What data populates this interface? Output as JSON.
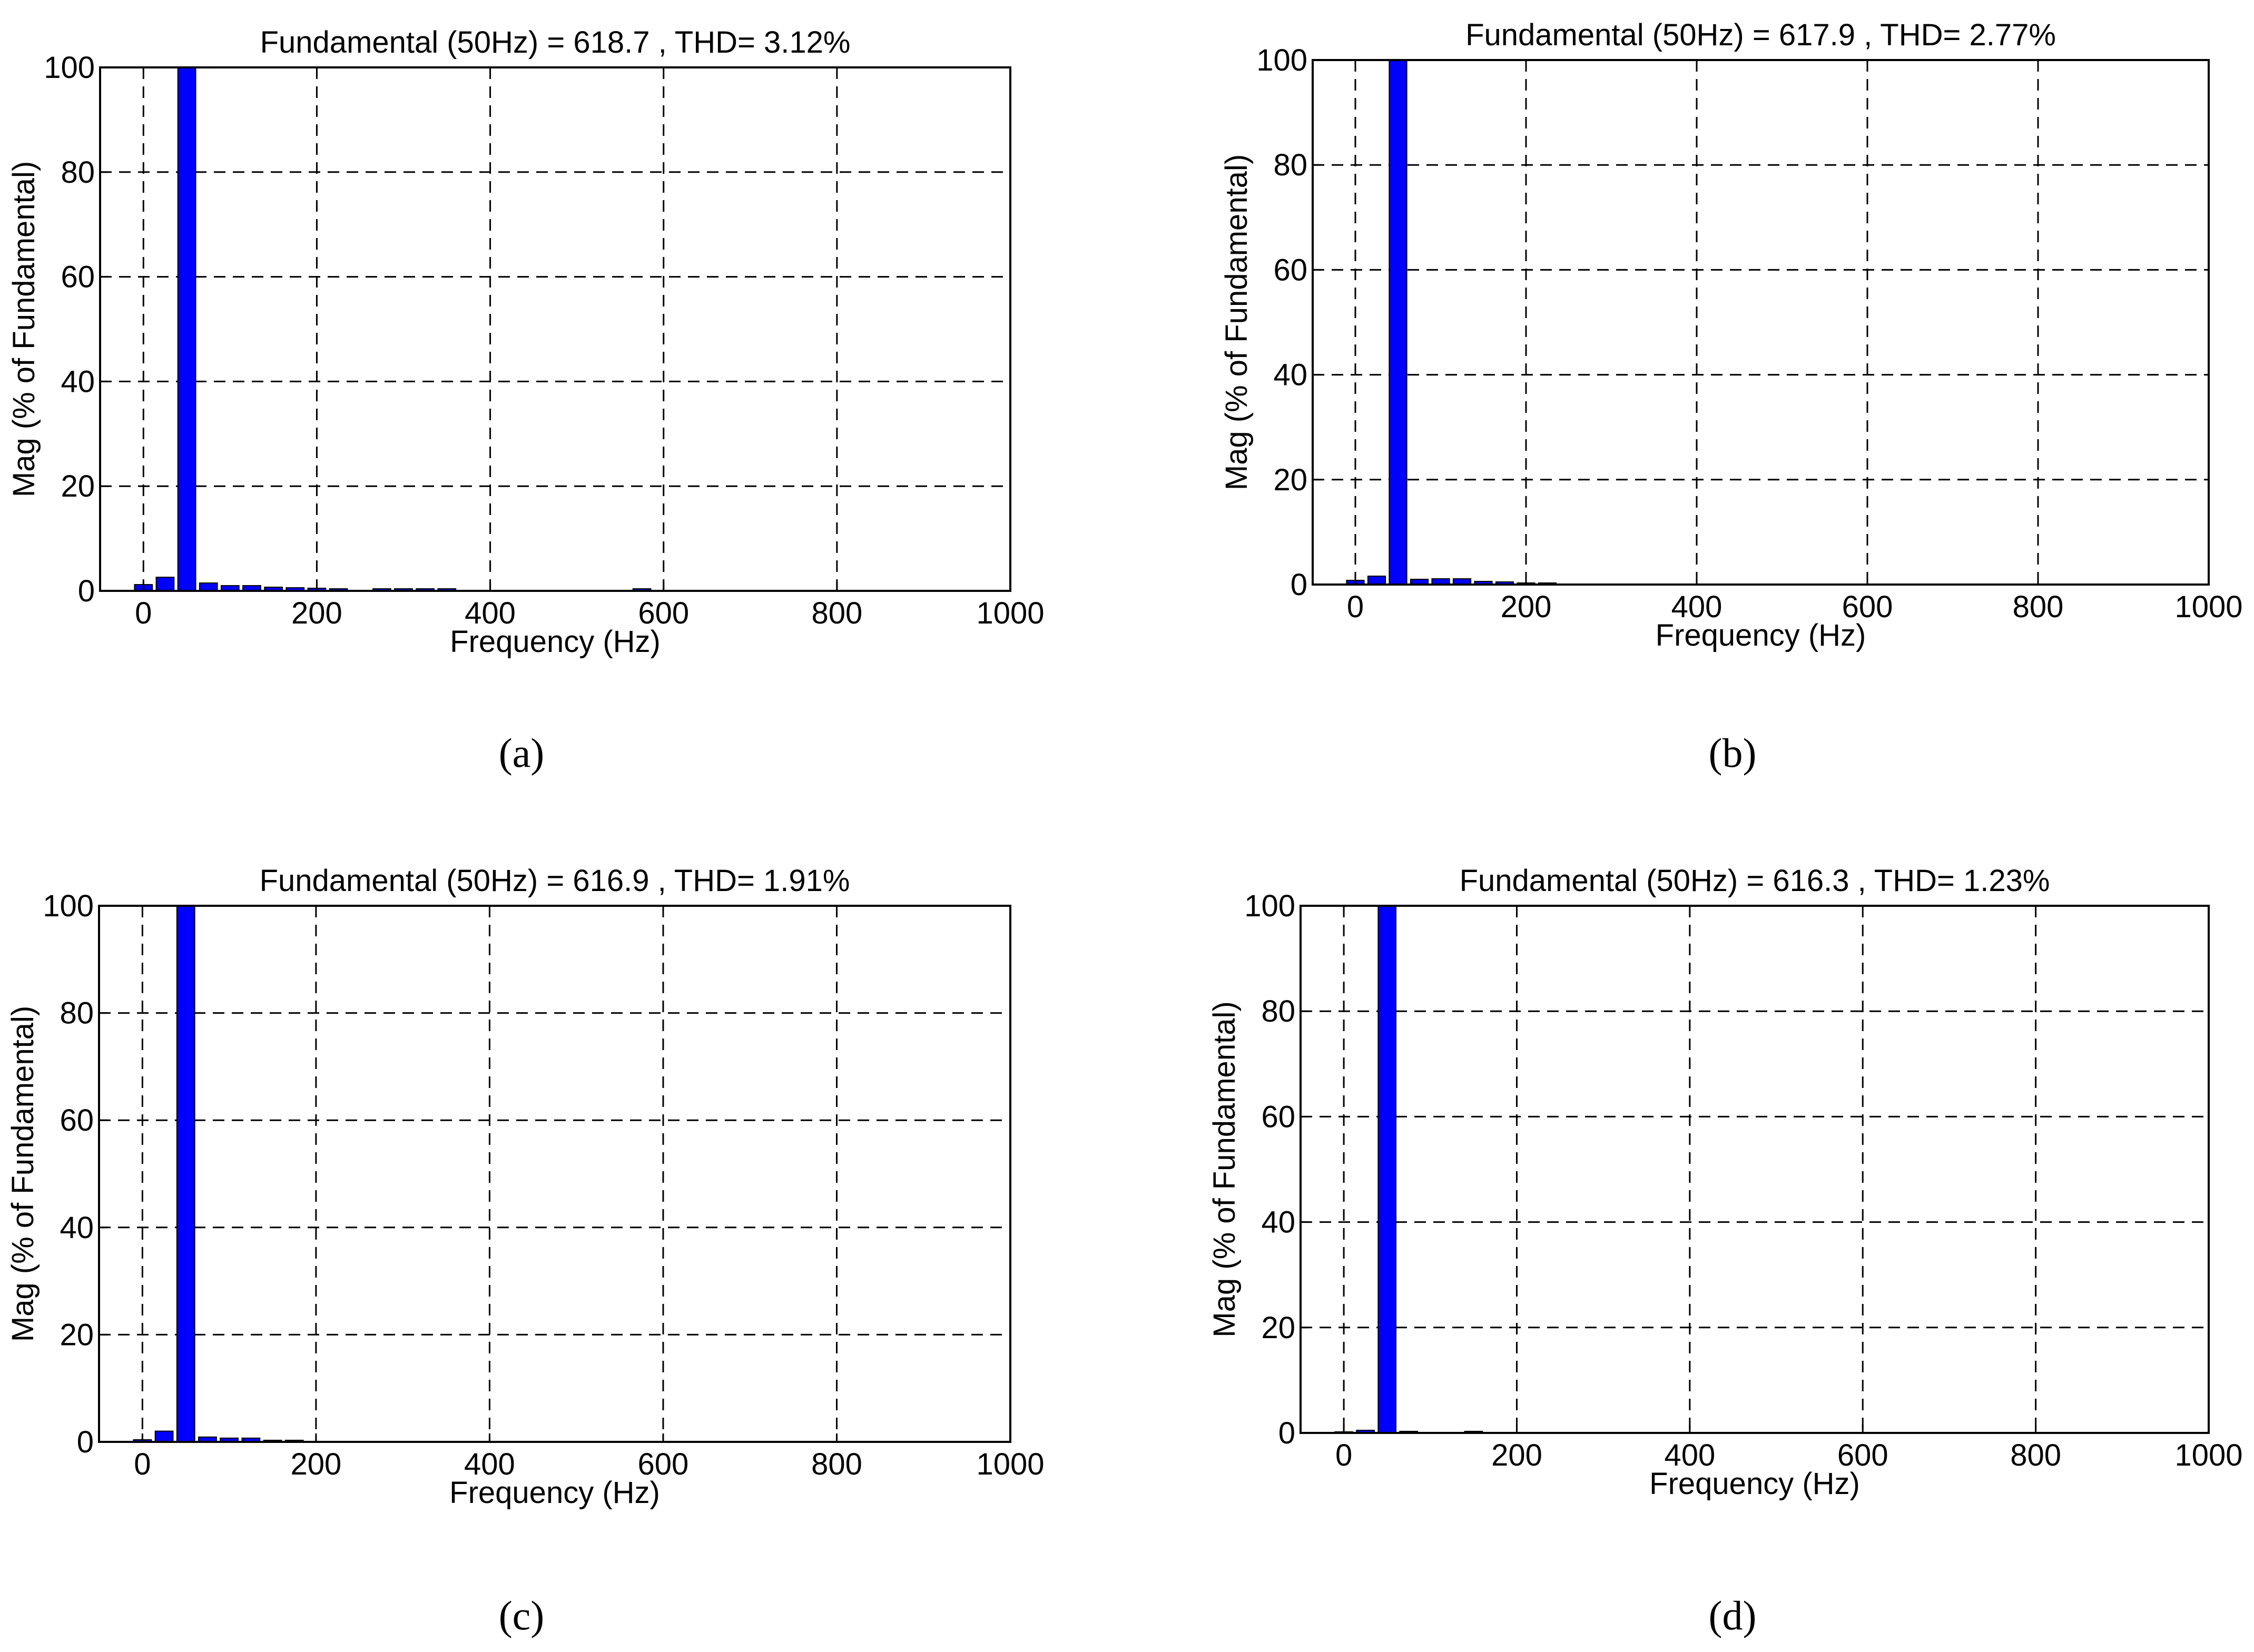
{
  "chart_data": [
    {
      "type": "bar",
      "title": "Fundamental (50Hz) = 618.7 , THD= 3.12%",
      "xlabel": "Frequency (Hz)",
      "ylabel": "Mag (% of Fundamental)",
      "xlim": [
        -50,
        1000
      ],
      "ylim": [
        0,
        100
      ],
      "xticks": [
        0,
        200,
        400,
        600,
        800,
        1000
      ],
      "yticks": [
        0,
        20,
        40,
        60,
        80,
        100
      ],
      "grid": true,
      "bar_color": "#0000ff",
      "x": [
        0,
        25,
        50,
        75,
        100,
        125,
        150,
        175,
        200,
        225,
        275,
        300,
        325,
        350,
        575
      ],
      "values": [
        1.2,
        2.6,
        100,
        1.5,
        1.0,
        1.0,
        0.7,
        0.6,
        0.5,
        0.4,
        0.4,
        0.4,
        0.4,
        0.4,
        0.4
      ],
      "caption": "(a)"
    },
    {
      "type": "bar",
      "title": "Fundamental (50Hz) = 617.9 , THD= 2.77%",
      "xlabel": "Frequency (Hz)",
      "ylabel": "Mag (% of Fundamental)",
      "xlim": [
        -50,
        1000
      ],
      "ylim": [
        0,
        100
      ],
      "xticks": [
        0,
        200,
        400,
        600,
        800,
        1000
      ],
      "yticks": [
        0,
        20,
        40,
        60,
        80,
        100
      ],
      "grid": true,
      "bar_color": "#0000ff",
      "x": [
        0,
        25,
        50,
        75,
        100,
        125,
        150,
        175,
        200,
        225
      ],
      "values": [
        0.8,
        1.6,
        100,
        1.0,
        1.1,
        1.1,
        0.6,
        0.5,
        0.3,
        0.3
      ],
      "caption": "(b)"
    },
    {
      "type": "bar",
      "title": "Fundamental (50Hz) = 616.9 , THD= 1.91%",
      "xlabel": "Frequency (Hz)",
      "ylabel": "Mag (% of Fundamental)",
      "xlim": [
        -50,
        1000
      ],
      "ylim": [
        0,
        100
      ],
      "xticks": [
        0,
        200,
        400,
        600,
        800,
        1000
      ],
      "yticks": [
        0,
        20,
        40,
        60,
        80,
        100
      ],
      "grid": true,
      "bar_color": "#0000ff",
      "x": [
        0,
        25,
        50,
        75,
        100,
        125,
        150,
        175
      ],
      "values": [
        0.4,
        2.0,
        100,
        0.9,
        0.7,
        0.7,
        0.3,
        0.3
      ],
      "caption": "(c)"
    },
    {
      "type": "bar",
      "title": "Fundamental (50Hz) = 616.3 , THD= 1.23%",
      "xlabel": "Frequency (Hz)",
      "ylabel": "Mag (% of Fundamental)",
      "xlim": [
        -50,
        1000
      ],
      "ylim": [
        0,
        100
      ],
      "xticks": [
        0,
        200,
        400,
        600,
        800,
        1000
      ],
      "yticks": [
        0,
        20,
        40,
        60,
        80,
        100
      ],
      "grid": true,
      "bar_color": "#0000ff",
      "x": [
        0,
        25,
        50,
        75,
        150
      ],
      "values": [
        0.2,
        0.5,
        100,
        0.3,
        0.3
      ],
      "caption": "(d)"
    }
  ]
}
